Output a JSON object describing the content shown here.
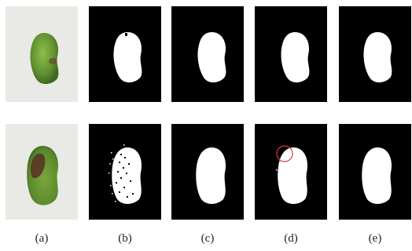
{
  "captions": [
    "(a)",
    "(b)",
    "(c)",
    "(d)",
    "(e)"
  ],
  "colors": {
    "photo_background": "#e9e9e6",
    "mask_background": "#000000",
    "mask_foreground": "#ffffff",
    "highlight_circle": "#e0393e",
    "mango_green": "#6f9a3a",
    "mango_brown": "#5a2e24"
  },
  "rows": [
    {
      "panels": [
        {
          "kind": "photo",
          "subject": "mango-green"
        },
        {
          "kind": "mask",
          "variant": "clean-with-hole"
        },
        {
          "kind": "mask",
          "variant": "clean"
        },
        {
          "kind": "mask",
          "variant": "clean"
        },
        {
          "kind": "mask",
          "variant": "clean"
        }
      ]
    },
    {
      "panels": [
        {
          "kind": "photo",
          "subject": "mango-bruised"
        },
        {
          "kind": "mask",
          "variant": "speckled"
        },
        {
          "kind": "mask",
          "variant": "slight-noise"
        },
        {
          "kind": "mask",
          "variant": "circled-defect"
        },
        {
          "kind": "mask",
          "variant": "clean"
        }
      ]
    }
  ]
}
